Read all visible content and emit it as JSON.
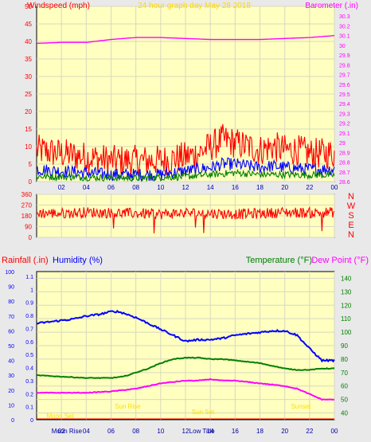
{
  "page": {
    "title": "24 hour graph day   May 28 2018"
  },
  "chart_data": [
    {
      "id": "wind_baro",
      "type": "line",
      "title": "24 hour graph day   May 28 2018",
      "ylabel_left": "Windspeed (mph)",
      "ylabel_right": "Barometer (.in)",
      "x_ticks": [
        "02",
        "04",
        "06",
        "08",
        "10",
        "12",
        "14",
        "16",
        "18",
        "20",
        "22",
        "00"
      ],
      "y_left_ticks": [
        0,
        5,
        10,
        15,
        20,
        25,
        30,
        35,
        40,
        45,
        50
      ],
      "ylim_left": [
        0,
        50
      ],
      "y_right_ticks": [
        "28.6",
        "28.7",
        "28.8",
        "28.9",
        "29",
        "29.1",
        "29.2",
        "29.3",
        "29.4",
        "29.5",
        "29.6",
        "29.7",
        "29.8",
        "29.9",
        "30",
        "30.1",
        "30.2",
        "30.3"
      ],
      "ylim_right": [
        28.6,
        30.4
      ],
      "xlim": [
        0,
        24
      ],
      "grid": true,
      "colors": {
        "gust": "#ff0000",
        "wind": "#0000ff",
        "avg": "#008000",
        "baro": "#ff00ff"
      },
      "series": [
        {
          "key": "baro",
          "points": [
            [
              0,
              30.02
            ],
            [
              2,
              30.03
            ],
            [
              4,
              30.03
            ],
            [
              6,
              30.06
            ],
            [
              8,
              30.08
            ],
            [
              10,
              30.08
            ],
            [
              12,
              30.07
            ],
            [
              14,
              30.06
            ],
            [
              16,
              30.06
            ],
            [
              18,
              30.06
            ],
            [
              20,
              30.07
            ],
            [
              22,
              30.08
            ],
            [
              24,
              30.1
            ]
          ]
        },
        {
          "key": "gust_band",
          "points": [
            [
              0,
              9
            ],
            [
              2,
              8
            ],
            [
              4,
              7
            ],
            [
              6,
              6
            ],
            [
              8,
              6
            ],
            [
              10,
              6
            ],
            [
              12,
              7
            ],
            [
              13,
              8
            ],
            [
              14,
              10
            ],
            [
              15,
              12
            ],
            [
              16,
              11
            ],
            [
              17,
              10
            ],
            [
              18,
              9
            ],
            [
              19,
              10
            ],
            [
              20,
              9
            ],
            [
              21,
              9
            ],
            [
              22,
              8
            ],
            [
              23,
              8
            ],
            [
              24,
              8
            ]
          ]
        },
        {
          "key": "wind_band",
          "points": [
            [
              0,
              3.5
            ],
            [
              2,
              3
            ],
            [
              4,
              2.5
            ],
            [
              6,
              2
            ],
            [
              8,
              2
            ],
            [
              10,
              2
            ],
            [
              12,
              3
            ],
            [
              14,
              4
            ],
            [
              15,
              5
            ],
            [
              16,
              5
            ],
            [
              17,
              4.5
            ],
            [
              18,
              4
            ],
            [
              19,
              4.5
            ],
            [
              20,
              4
            ],
            [
              22,
              3.5
            ],
            [
              24,
              3.5
            ]
          ]
        },
        {
          "key": "avg_band",
          "points": [
            [
              0,
              1.5
            ],
            [
              4,
              1.2
            ],
            [
              8,
              1
            ],
            [
              12,
              1.4
            ],
            [
              14,
              2
            ],
            [
              16,
              2.5
            ],
            [
              18,
              2
            ],
            [
              20,
              2
            ],
            [
              24,
              1.8
            ]
          ]
        }
      ]
    },
    {
      "id": "direction",
      "type": "line",
      "y_ticks": [
        0,
        90,
        180,
        270,
        360
      ],
      "ylim": [
        0,
        360
      ],
      "compass": [
        "N",
        "W",
        "S",
        "E",
        "N"
      ],
      "color": "#ff0000",
      "series": [
        {
          "key": "dir",
          "points": [
            [
              0,
              205
            ],
            [
              2,
              200
            ],
            [
              4,
              210
            ],
            [
              6,
              205
            ],
            [
              8,
              200
            ],
            [
              10,
              195
            ],
            [
              12,
              205
            ],
            [
              14,
              200
            ],
            [
              16,
              195
            ],
            [
              18,
              200
            ],
            [
              20,
              210
            ],
            [
              22,
              205
            ],
            [
              24,
              210
            ]
          ]
        }
      ]
    },
    {
      "id": "temp_hum",
      "type": "line",
      "ylabel_rain": "Rainfall (.in)",
      "ylabel_hum": "Humidity (%)",
      "ylabel_temp": "Temperature (°F)",
      "ylabel_dew": "Dew Point (°F)",
      "x_ticks": [
        "02",
        "04",
        "06",
        "08",
        "10",
        "12",
        "14",
        "16",
        "18",
        "20",
        "22",
        "00"
      ],
      "y_hum_ticks": [
        0,
        10,
        20,
        30,
        40,
        50,
        60,
        70,
        80,
        90,
        100
      ],
      "y_rain_ticks": [
        "0",
        "0.1",
        "0.2",
        "0.3",
        "0.4",
        "0.5",
        "0.6",
        "0.7",
        "0.8",
        "0.9",
        "1",
        "1.1"
      ],
      "y_temp_ticks": [
        40,
        50,
        60,
        70,
        80,
        90,
        100,
        110,
        120,
        130,
        140
      ],
      "ylim_temp": [
        35,
        145
      ],
      "grid": true,
      "colors": {
        "humidity": "#0000ff",
        "temperature": "#008000",
        "dewpoint": "#ff00ff"
      },
      "annotations": [
        {
          "text": "Moon Set",
          "x": 0.8,
          "row": 0,
          "color": "#ffdd00"
        },
        {
          "text": "Sun Rise",
          "x": 6.3,
          "row": 2,
          "color": "#ffdd00"
        },
        {
          "text": "Sun Set",
          "x": 12.5,
          "row": 1,
          "color": "#ffdd00"
        },
        {
          "text": "Sunset",
          "x": 20.5,
          "row": 2,
          "color": "#ffdd00"
        }
      ],
      "bottom_labels": [
        {
          "text": "Moon Rise",
          "x": 1.2
        },
        {
          "text": "Low Tide",
          "x": 12.3
        }
      ],
      "series": [
        {
          "key": "humidity",
          "unit": "%",
          "points": [
            [
              0,
              65
            ],
            [
              1,
              66
            ],
            [
              2,
              67
            ],
            [
              3,
              68
            ],
            [
              4,
              70
            ],
            [
              5,
              71
            ],
            [
              6,
              73
            ],
            [
              6.5,
              73
            ],
            [
              7,
              72
            ],
            [
              8,
              69
            ],
            [
              9,
              65
            ],
            [
              10,
              61
            ],
            [
              11,
              57
            ],
            [
              12,
              53
            ],
            [
              13,
              54
            ],
            [
              14,
              54
            ],
            [
              15,
              55
            ],
            [
              16,
              57
            ],
            [
              17,
              58
            ],
            [
              18,
              59
            ],
            [
              19,
              60
            ],
            [
              20,
              60
            ],
            [
              21,
              57
            ],
            [
              22,
              48
            ],
            [
              23,
              40
            ],
            [
              24,
              40
            ]
          ]
        },
        {
          "key": "temperature",
          "unit": "°F",
          "points": [
            [
              0,
              68
            ],
            [
              2,
              67
            ],
            [
              4,
              66
            ],
            [
              6,
              66
            ],
            [
              7,
              67
            ],
            [
              8,
              70
            ],
            [
              9,
              73
            ],
            [
              10,
              77
            ],
            [
              11,
              80
            ],
            [
              12,
              81
            ],
            [
              13,
              81
            ],
            [
              14,
              80
            ],
            [
              15,
              80
            ],
            [
              16,
              79
            ],
            [
              17,
              78
            ],
            [
              18,
              77
            ],
            [
              19,
              75
            ],
            [
              20,
              73
            ],
            [
              21,
              72
            ],
            [
              22,
              72
            ],
            [
              23,
              73
            ],
            [
              24,
              73
            ]
          ]
        },
        {
          "key": "dewpoint",
          "unit": "°F",
          "points": [
            [
              0,
              55
            ],
            [
              2,
              55
            ],
            [
              4,
              55
            ],
            [
              6,
              56
            ],
            [
              8,
              58
            ],
            [
              9,
              60
            ],
            [
              10,
              62
            ],
            [
              11,
              63
            ],
            [
              12,
              64
            ],
            [
              13,
              64
            ],
            [
              14,
              65
            ],
            [
              15,
              64
            ],
            [
              16,
              64
            ],
            [
              17,
              63
            ],
            [
              18,
              62
            ],
            [
              19,
              61
            ],
            [
              20,
              60
            ],
            [
              21,
              58
            ],
            [
              22,
              54
            ],
            [
              23,
              50
            ],
            [
              24,
              50
            ]
          ]
        }
      ]
    }
  ]
}
